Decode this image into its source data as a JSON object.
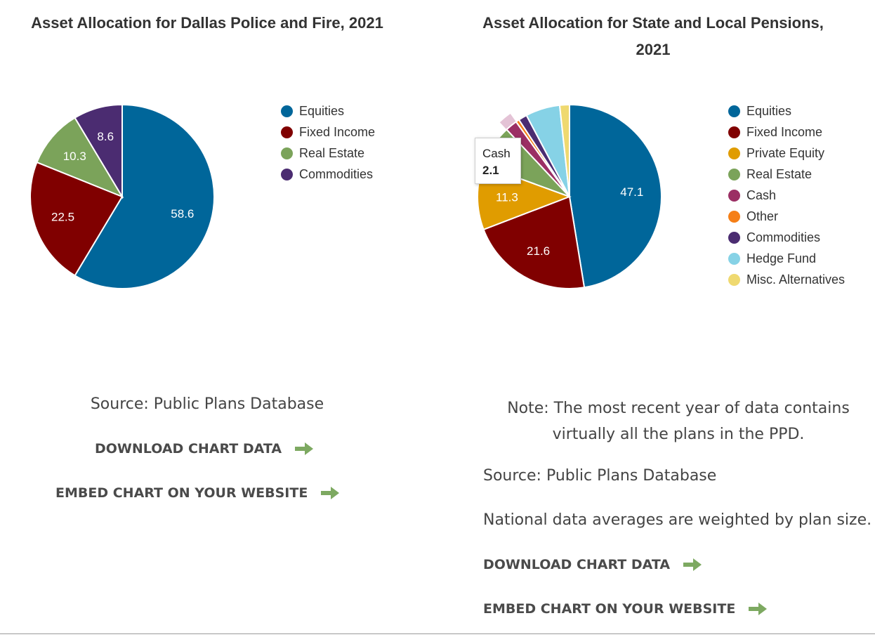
{
  "left": {
    "title": "Asset Allocation for Dallas Police and Fire, 2021",
    "source": "Source: Public Plans Database",
    "download_label": "DOWNLOAD CHART DATA",
    "embed_label": "EMBED CHART ON YOUR WEBSITE",
    "arrow_icon": "green-right-arrow-icon"
  },
  "right": {
    "title": "Asset Allocation for State and Local Pensions, 2021",
    "note": "Note: The most recent year of data contains virtually all the plans in the PPD.",
    "source": "Source: Public Plans Database",
    "national": "National data averages are weighted by plan size.",
    "download_label": "DOWNLOAD CHART DATA",
    "embed_label": "EMBED CHART ON YOUR WEBSITE",
    "tooltip": {
      "label": "Cash",
      "value": "2.1"
    },
    "arrow_icon": "green-right-arrow-icon"
  },
  "colors": {
    "arrow": "#6fa050",
    "highlight": "#e4c3d6"
  },
  "chart_data": [
    {
      "type": "pie",
      "title": "Asset Allocation for Dallas Police and Fire, 2021",
      "legend": "right",
      "slices": [
        {
          "label": "Equities",
          "value": 58.6,
          "color": "#00669a",
          "show_label": true
        },
        {
          "label": "Fixed Income",
          "value": 22.5,
          "color": "#800000",
          "show_label": true
        },
        {
          "label": "Real Estate",
          "value": 10.3,
          "color": "#7ba35a",
          "show_label": true
        },
        {
          "label": "Commodities",
          "value": 8.6,
          "color": "#4b2c71",
          "show_label": true
        }
      ]
    },
    {
      "type": "pie",
      "title": "Asset Allocation for State and Local Pensions, 2021",
      "legend": "right",
      "slices": [
        {
          "label": "Equities",
          "value": 47.1,
          "color": "#00669a",
          "show_label": true
        },
        {
          "label": "Fixed Income",
          "value": 21.6,
          "color": "#800000",
          "show_label": true
        },
        {
          "label": "Private Equity",
          "value": 11.3,
          "color": "#e09c00",
          "show_label": true
        },
        {
          "label": "Real Estate",
          "value": 7.4,
          "color": "#7ba35a",
          "show_label": false
        },
        {
          "label": "Cash",
          "value": 2.1,
          "color": "#9b2f64",
          "show_label": false,
          "highlighted": true
        },
        {
          "label": "Other",
          "value": 0.6,
          "color": "#f57f17",
          "show_label": false
        },
        {
          "label": "Commodities",
          "value": 1.5,
          "color": "#4b2c71",
          "show_label": false
        },
        {
          "label": "Hedge Fund",
          "value": 6.0,
          "color": "#86d2e6",
          "show_label": false
        },
        {
          "label": "Misc. Alternatives",
          "value": 1.7,
          "color": "#efd970",
          "show_label": false
        }
      ]
    }
  ]
}
